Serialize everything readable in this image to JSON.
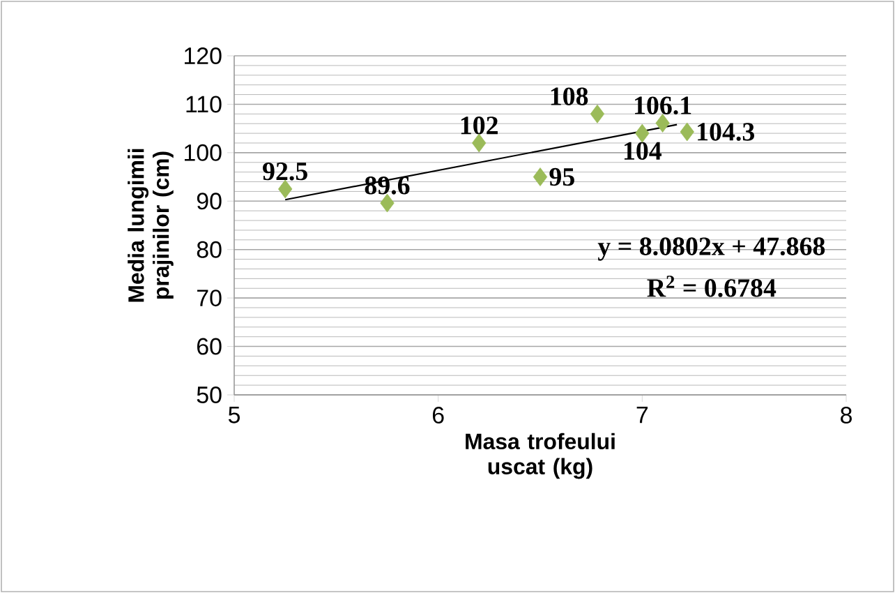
{
  "chart_data": {
    "type": "scatter",
    "xlabel": "Masa trofeului uscat (kg)",
    "ylabel": "Media lungimii prajinilor (cm)",
    "xlim": [
      5,
      8
    ],
    "xticks": [
      5,
      6,
      7,
      8
    ],
    "ylim": [
      50,
      120
    ],
    "yticks": [
      50,
      60,
      70,
      80,
      90,
      100,
      110,
      120
    ],
    "grid": "y",
    "series": [
      {
        "marker": "diamond",
        "color": "#9bbb59",
        "x": [
          5.25,
          5.75,
          6.2,
          6.5,
          6.78,
          7.0,
          7.1,
          7.22
        ],
        "values": [
          92.5,
          89.6,
          102,
          95,
          108,
          104,
          106.1,
          104.3
        ],
        "value_labels": [
          "92.5",
          "89.6",
          "102",
          "95",
          "108",
          "104",
          "106.1",
          "104.3"
        ]
      },
      {
        "type": "line",
        "color": "#000000",
        "x": [
          5.25,
          7.17
        ],
        "values": [
          90.3,
          105.8
        ]
      }
    ],
    "annotations": [
      "y = 8.0802x + 47.868",
      "R$^{2}$ = 0.6784"
    ]
  }
}
